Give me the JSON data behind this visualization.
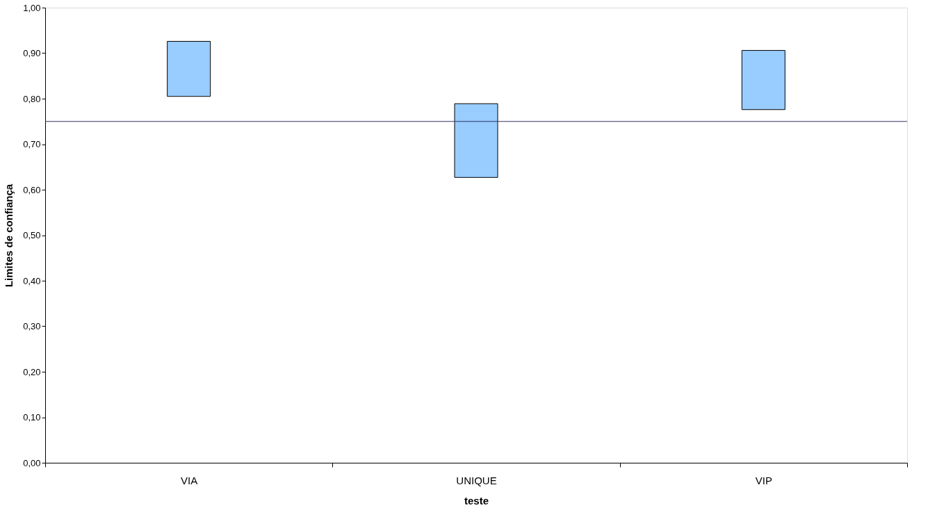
{
  "chart_data": {
    "type": "bar",
    "xlabel": "teste",
    "ylabel": "Limites de confiança",
    "categories": [
      "VIA",
      "UNIQUE",
      "VIP"
    ],
    "base": [
      0.805,
      0.627,
      0.776
    ],
    "values": [
      0.121,
      0.162,
      0.13
    ],
    "color": "#99ccff",
    "ylim": [
      0,
      1
    ],
    "yticks": [
      {
        "value": 0,
        "label": "0,00"
      },
      {
        "value": 0.1,
        "label": "0,10"
      },
      {
        "value": 0.2,
        "label": "0,20"
      },
      {
        "value": 0.3,
        "label": "0,30"
      },
      {
        "value": 0.4,
        "label": "0,40"
      },
      {
        "value": 0.5,
        "label": "0,50"
      },
      {
        "value": 0.6,
        "label": "0,60"
      },
      {
        "value": 0.7,
        "label": "0,70"
      },
      {
        "value": 0.8,
        "label": "0,80"
      },
      {
        "value": 0.9,
        "label": "0,90"
      },
      {
        "value": 1,
        "label": "1,00"
      }
    ],
    "ref_lines": [
      {
        "axis": "y",
        "value": 0.75,
        "label": null,
        "color": "#333366"
      }
    ],
    "grid": false
  }
}
